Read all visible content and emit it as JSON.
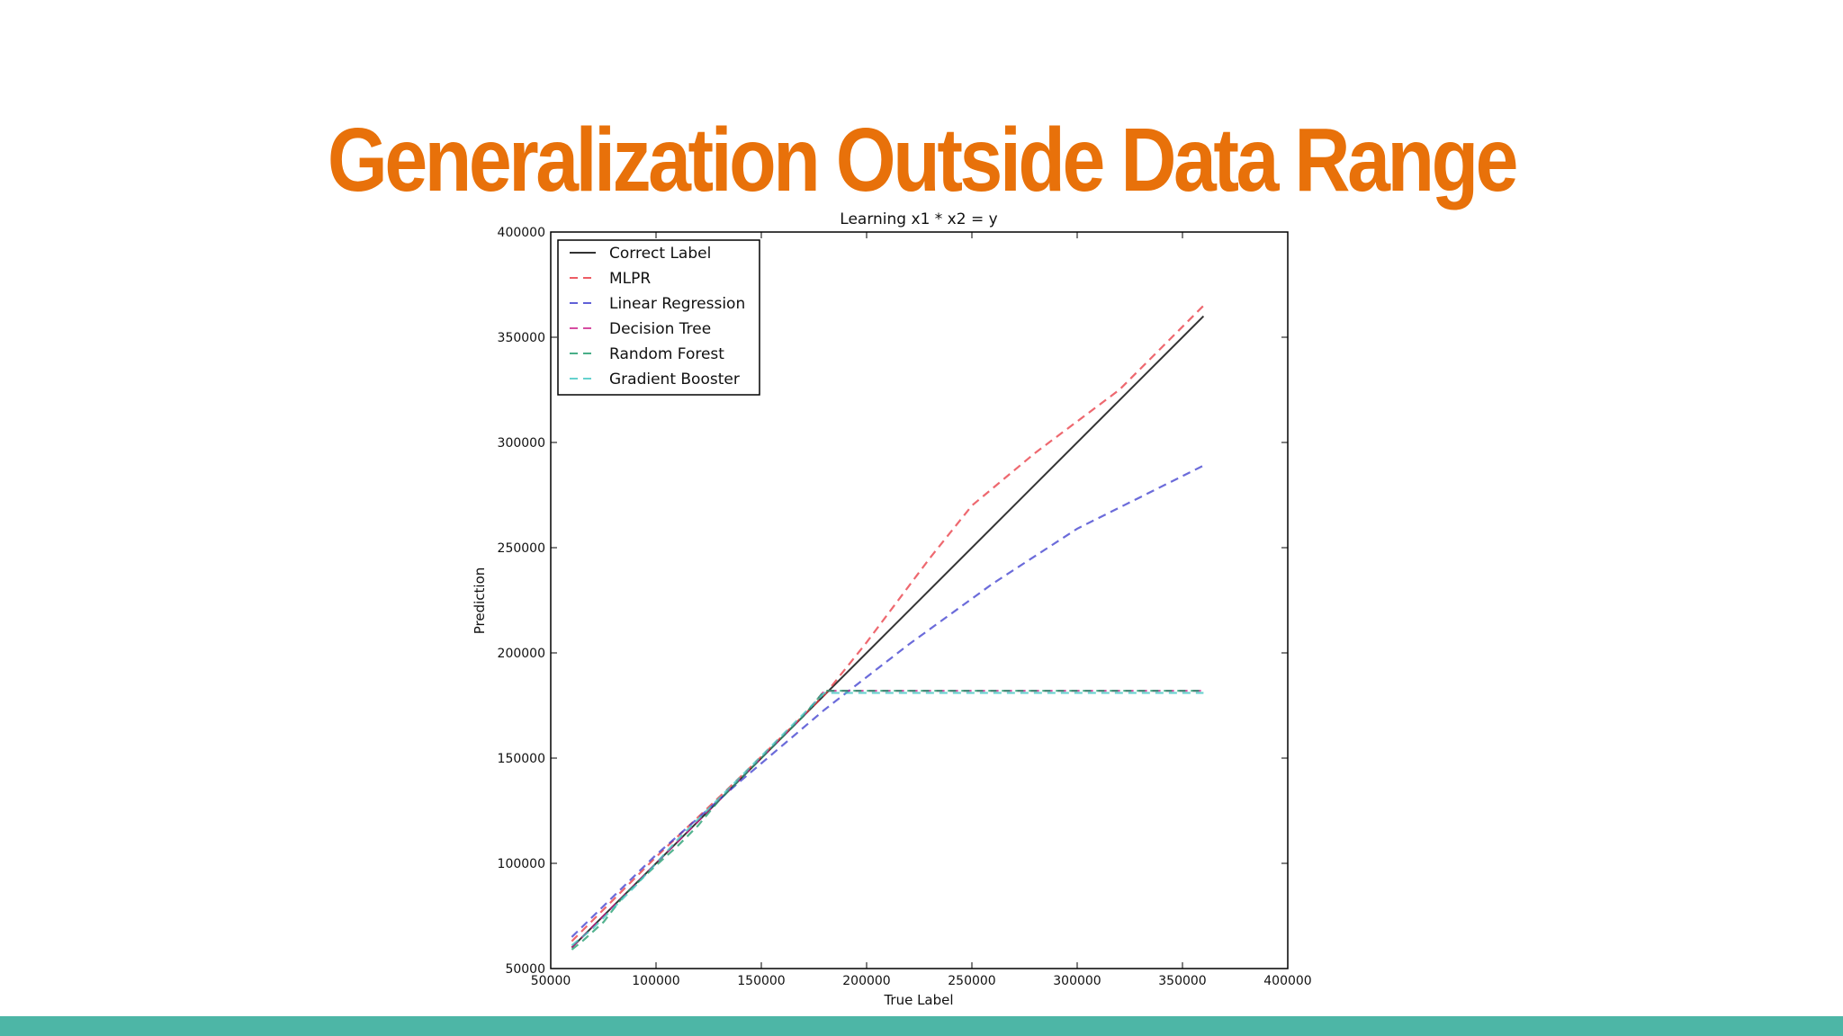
{
  "slide": {
    "title": "Generalization Outside Data Range",
    "footer_color": "#4db6a6",
    "title_color": "#e8710a"
  },
  "chart_data": {
    "type": "line",
    "title": "Learning x1 * x2 = y",
    "xlabel": "True Label",
    "ylabel": "Prediction",
    "xlim": [
      50000,
      400000
    ],
    "ylim": [
      50000,
      400000
    ],
    "xticks": [
      "50000",
      "100000",
      "150000",
      "200000",
      "250000",
      "300000",
      "350000",
      "400000"
    ],
    "yticks": [
      "50000",
      "100000",
      "150000",
      "200000",
      "250000",
      "300000",
      "350000",
      "400000"
    ],
    "legend_position": "top-left",
    "series": [
      {
        "name": "Correct Label",
        "color": "#000000",
        "style": "solid",
        "points": [
          [
            60000,
            60000
          ],
          [
            360000,
            360000
          ]
        ]
      },
      {
        "name": "MLPR",
        "color": "#e8353f",
        "style": "dashed",
        "points": [
          [
            60000,
            63000
          ],
          [
            100000,
            103000
          ],
          [
            140000,
            141000
          ],
          [
            180000,
            180000
          ],
          [
            200000,
            205000
          ],
          [
            230000,
            245000
          ],
          [
            250000,
            270000
          ],
          [
            280000,
            295000
          ],
          [
            320000,
            325000
          ],
          [
            360000,
            365000
          ]
        ]
      },
      {
        "name": "Linear Regression",
        "color": "#3a3acd",
        "style": "dashed",
        "points": [
          [
            60000,
            65000
          ],
          [
            100000,
            104000
          ],
          [
            140000,
            139000
          ],
          [
            180000,
            173000
          ],
          [
            220000,
            204000
          ],
          [
            260000,
            233000
          ],
          [
            300000,
            259000
          ],
          [
            360000,
            289000
          ]
        ]
      },
      {
        "name": "Decision Tree",
        "color": "#cc1f8a",
        "style": "dashed",
        "points": [
          [
            60000,
            60000
          ],
          [
            70000,
            70000
          ],
          [
            80000,
            80000
          ],
          [
            90000,
            90000
          ],
          [
            100000,
            100000
          ],
          [
            110000,
            110000
          ],
          [
            120000,
            120000
          ],
          [
            130000,
            130000
          ],
          [
            140000,
            140000
          ],
          [
            150000,
            150000
          ],
          [
            160000,
            160000
          ],
          [
            170000,
            170000
          ],
          [
            180000,
            182000
          ],
          [
            360000,
            182000
          ]
        ]
      },
      {
        "name": "Random Forest",
        "color": "#1a9a6a",
        "style": "dashed",
        "points": [
          [
            60000,
            59000
          ],
          [
            65000,
            63000
          ],
          [
            75000,
            72000
          ],
          [
            85000,
            85000
          ],
          [
            100000,
            99000
          ],
          [
            110000,
            108000
          ],
          [
            120000,
            118000
          ],
          [
            130000,
            130000
          ],
          [
            140000,
            140000
          ],
          [
            150000,
            150000
          ],
          [
            160000,
            160000
          ],
          [
            170000,
            170000
          ],
          [
            180000,
            182000
          ],
          [
            360000,
            182000
          ]
        ]
      },
      {
        "name": "Gradient Booster",
        "color": "#3ec7c2",
        "style": "dashed",
        "points": [
          [
            60000,
            61000
          ],
          [
            70000,
            69000
          ],
          [
            80000,
            79000
          ],
          [
            90000,
            89000
          ],
          [
            100000,
            100000
          ],
          [
            110000,
            111000
          ],
          [
            120000,
            121000
          ],
          [
            130000,
            131000
          ],
          [
            140000,
            141000
          ],
          [
            150000,
            151000
          ],
          [
            160000,
            161000
          ],
          [
            170000,
            171000
          ],
          [
            180000,
            181000
          ],
          [
            360000,
            181000
          ]
        ]
      }
    ]
  }
}
